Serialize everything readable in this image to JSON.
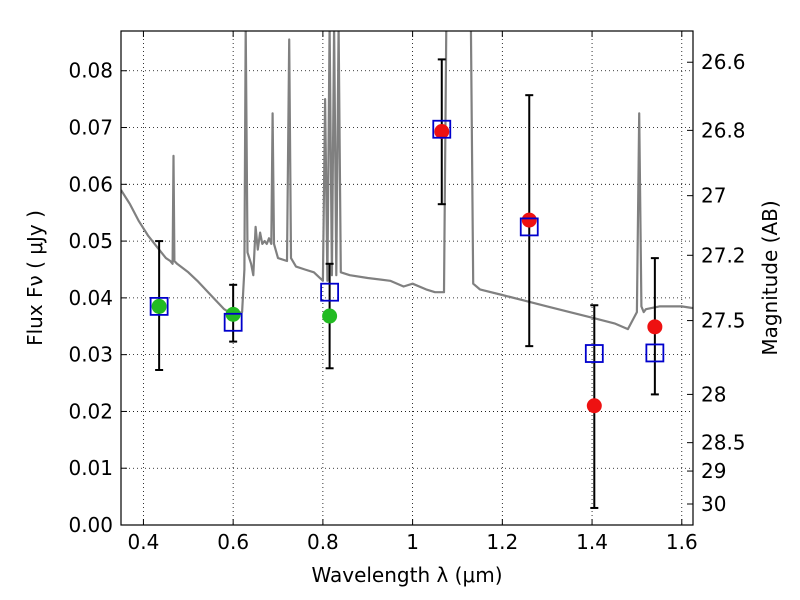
{
  "chart_data": {
    "type": "scatter",
    "xlabel": "Wavelength  λ (μm)",
    "ylabel": "Flux  Fν  ( μJy )",
    "ylabel_right": "Magnitude (AB)",
    "xlim": [
      0.35,
      1.625
    ],
    "ylim": [
      0.0,
      0.087
    ],
    "grid": true,
    "x_ticks": [
      0.4,
      0.6,
      0.8,
      1.0,
      1.2,
      1.4,
      1.6
    ],
    "x_tick_labels": [
      "0.4",
      "0.6",
      "0.8",
      "1",
      "1.2",
      "1.4",
      "1.6"
    ],
    "y_ticks": [
      0.0,
      0.01,
      0.02,
      0.03,
      0.04,
      0.05,
      0.06,
      0.07,
      0.08
    ],
    "y_tick_labels": [
      "0.00",
      "0.01",
      "0.02",
      "0.03",
      "0.04",
      "0.05",
      "0.06",
      "0.07",
      "0.08"
    ],
    "right_ticks": [
      {
        "label": "26.6",
        "flux": 0.0815
      },
      {
        "label": "26.8",
        "flux": 0.0695
      },
      {
        "label": "27",
        "flux": 0.058
      },
      {
        "label": "27.2",
        "flux": 0.0475
      },
      {
        "label": "27.5",
        "flux": 0.036
      },
      {
        "label": "28",
        "flux": 0.023
      },
      {
        "label": "28.5",
        "flux": 0.0145
      },
      {
        "label": "29",
        "flux": 0.0095
      },
      {
        "label": "30",
        "flux": 0.0037
      }
    ],
    "series": [
      {
        "name": "model spectrum",
        "kind": "line",
        "color": "#808080",
        "x": [
          0.35,
          0.37,
          0.39,
          0.41,
          0.43,
          0.45,
          0.46,
          0.465,
          0.467,
          0.469,
          0.475,
          0.5,
          0.52,
          0.55,
          0.58,
          0.6,
          0.62,
          0.625,
          0.628,
          0.632,
          0.64,
          0.645,
          0.65,
          0.655,
          0.66,
          0.665,
          0.67,
          0.675,
          0.68,
          0.685,
          0.688,
          0.691,
          0.7,
          0.72,
          0.725,
          0.729,
          0.74,
          0.76,
          0.78,
          0.8,
          0.805,
          0.81,
          0.815,
          0.82,
          0.825,
          0.83,
          0.835,
          0.84,
          0.86,
          0.9,
          0.95,
          0.98,
          1.0,
          1.03,
          1.05,
          1.07,
          1.075,
          1.1,
          1.13,
          1.135,
          1.15,
          1.2,
          1.25,
          1.3,
          1.35,
          1.4,
          1.45,
          1.48,
          1.5,
          1.505,
          1.51,
          1.515,
          1.52,
          1.55,
          1.6,
          1.625
        ],
        "y": [
          0.059,
          0.0565,
          0.0535,
          0.051,
          0.049,
          0.047,
          0.0465,
          0.046,
          0.065,
          0.0465,
          0.046,
          0.0445,
          0.043,
          0.0405,
          0.038,
          0.037,
          0.0375,
          0.045,
          0.088,
          0.048,
          0.046,
          0.044,
          0.0525,
          0.0485,
          0.0515,
          0.0495,
          0.05,
          0.0495,
          0.0505,
          0.0495,
          0.0725,
          0.0495,
          0.047,
          0.0465,
          0.0855,
          0.047,
          0.0455,
          0.045,
          0.0445,
          0.043,
          0.075,
          0.043,
          0.088,
          0.044,
          0.088,
          0.044,
          0.088,
          0.0445,
          0.044,
          0.0435,
          0.043,
          0.042,
          0.0425,
          0.0415,
          0.041,
          0.041,
          0.088,
          0.088,
          0.088,
          0.0425,
          0.0415,
          0.0405,
          0.0395,
          0.0385,
          0.0375,
          0.0365,
          0.0355,
          0.0345,
          0.0375,
          0.0725,
          0.0385,
          0.0375,
          0.038,
          0.0385,
          0.0385,
          0.0382
        ]
      },
      {
        "name": "blue squares",
        "kind": "square",
        "color": "#0000cc",
        "x": [
          0.435,
          0.6,
          0.815,
          1.065,
          1.26,
          1.405,
          1.54
        ],
        "y": [
          0.0385,
          0.0357,
          0.041,
          0.0697,
          0.0525,
          0.0302,
          0.0303
        ]
      },
      {
        "name": "green circles",
        "kind": "circle",
        "color": "#22bb22",
        "x": [
          0.435,
          0.6,
          0.815
        ],
        "y": [
          0.0385,
          0.0371,
          0.0368
        ]
      },
      {
        "name": "red circles",
        "kind": "circle",
        "color": "#ee1111",
        "x": [
          1.065,
          1.26,
          1.405,
          1.54
        ],
        "y": [
          0.0693,
          0.0537,
          0.021,
          0.0349
        ]
      }
    ],
    "error_bars": [
      {
        "x": 0.435,
        "low": 0.0273,
        "high": 0.05
      },
      {
        "x": 0.6,
        "low": 0.0323,
        "high": 0.0423
      },
      {
        "x": 0.815,
        "low": 0.0276,
        "high": 0.046
      },
      {
        "x": 1.065,
        "low": 0.0565,
        "high": 0.082
      },
      {
        "x": 1.26,
        "low": 0.0315,
        "high": 0.0757
      },
      {
        "x": 1.405,
        "low": 0.003,
        "high": 0.0387
      },
      {
        "x": 1.54,
        "low": 0.023,
        "high": 0.047
      }
    ]
  }
}
